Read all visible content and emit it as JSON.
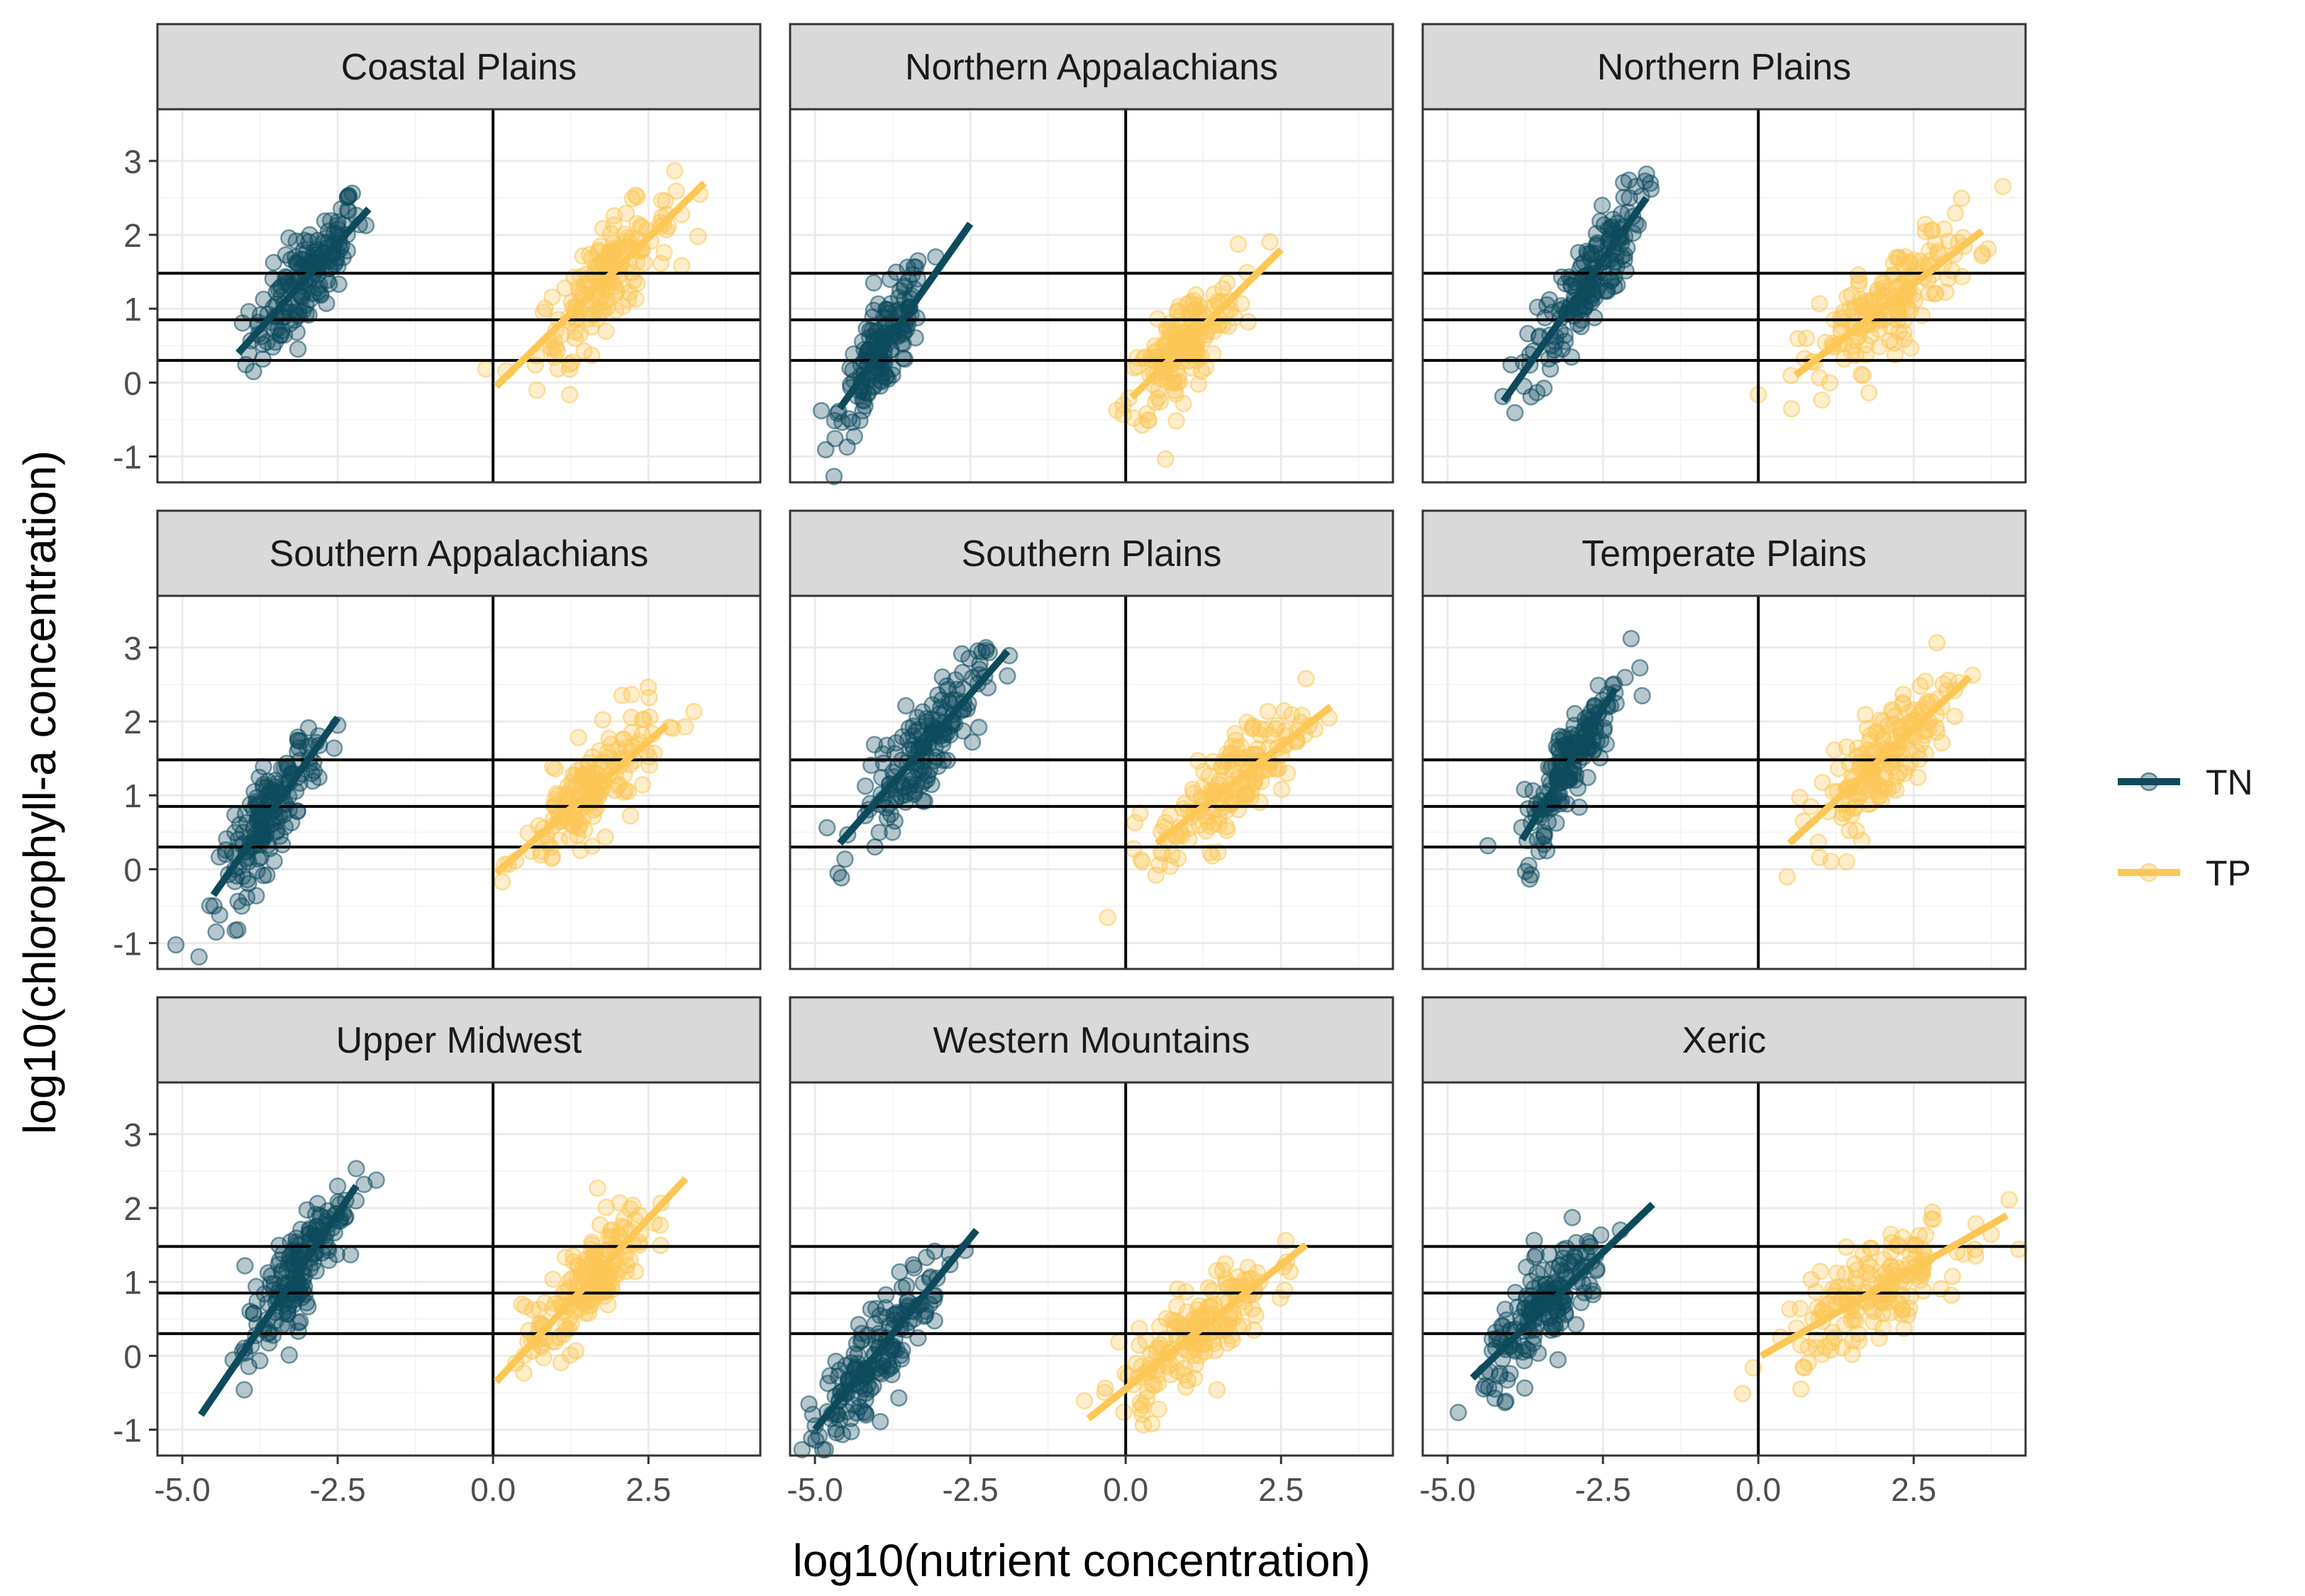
{
  "colors": {
    "TN": "#0d4a5c",
    "TP": "#fcc755",
    "strip_fill": "#d9d9d9",
    "grid_major": "#ebebeb",
    "grid_minor": "#f5f5f5",
    "panel_border": "#333333",
    "ref_line": "#000000"
  },
  "chart_data": {
    "type": "scatter",
    "facet_layout": {
      "rows": 3,
      "cols": 3
    },
    "xlabel": "log10(nutrient concentration)",
    "ylabel": "log10(chlorophyll-a concentration)",
    "xlim": [
      -5.4,
      4.3
    ],
    "ylim": [
      -1.35,
      3.7
    ],
    "x_ticks": [
      -5.0,
      -2.5,
      0.0,
      2.5
    ],
    "x_tick_labels": [
      "-5.0",
      "-2.5",
      "0.0",
      "2.5"
    ],
    "y_ticks": [
      -1,
      0,
      1,
      2,
      3
    ],
    "y_tick_labels": [
      "-1",
      "0",
      "1",
      "2",
      "3"
    ],
    "reference_lines": {
      "vertical_x": [
        0
      ],
      "horizontal_y": [
        0.3,
        0.85,
        1.48
      ]
    },
    "grid": true,
    "legend": {
      "position": "right",
      "entries": [
        "TN",
        "TP"
      ]
    },
    "series_names": [
      "TN",
      "TP"
    ],
    "facets": [
      {
        "title": "Coastal Plains",
        "TN": {
          "x_center": -3.0,
          "x_sd": 0.45,
          "fit": {
            "x": [
              -4.1,
              -2.0
            ],
            "y": [
              0.4,
              2.35
            ]
          }
        },
        "TP": {
          "x_center": 1.8,
          "x_sd": 0.55,
          "fit": {
            "x": [
              0.05,
              3.4
            ],
            "y": [
              -0.05,
              2.7
            ]
          }
        }
      },
      {
        "title": "Northern Appalachians",
        "TN": {
          "x_center": -3.9,
          "x_sd": 0.35,
          "fit": {
            "x": [
              -4.6,
              -2.5
            ],
            "y": [
              -0.35,
              2.15
            ]
          }
        },
        "TP": {
          "x_center": 0.9,
          "x_sd": 0.45,
          "fit": {
            "x": [
              0.1,
              2.5
            ],
            "y": [
              -0.2,
              1.8
            ]
          }
        }
      },
      {
        "title": "Northern Plains",
        "TN": {
          "x_center": -2.8,
          "x_sd": 0.45,
          "fit": {
            "x": [
              -4.1,
              -1.8
            ],
            "y": [
              -0.25,
              2.5
            ]
          }
        },
        "TP": {
          "x_center": 2.1,
          "x_sd": 0.7,
          "fit": {
            "x": [
              0.6,
              3.6
            ],
            "y": [
              0.1,
              2.05
            ]
          }
        }
      },
      {
        "title": "Southern Appalachians",
        "TN": {
          "x_center": -3.6,
          "x_sd": 0.4,
          "fit": {
            "x": [
              -4.5,
              -2.5
            ],
            "y": [
              -0.35,
              2.05
            ]
          }
        },
        "TP": {
          "x_center": 1.6,
          "x_sd": 0.55,
          "fit": {
            "x": [
              0.05,
              2.8
            ],
            "y": [
              -0.05,
              1.95
            ]
          }
        }
      },
      {
        "title": "Southern Plains",
        "TN": {
          "x_center": -3.3,
          "x_sd": 0.5,
          "fit": {
            "x": [
              -4.6,
              -1.9
            ],
            "y": [
              0.35,
              2.95
            ]
          }
        },
        "TP": {
          "x_center": 1.7,
          "x_sd": 0.6,
          "fit": {
            "x": [
              0.5,
              3.3
            ],
            "y": [
              0.35,
              2.2
            ]
          }
        }
      },
      {
        "title": "Temperate Plains",
        "TN": {
          "x_center": -3.0,
          "x_sd": 0.4,
          "fit": {
            "x": [
              -3.8,
              -2.3
            ],
            "y": [
              0.4,
              2.45
            ]
          }
        },
        "TP": {
          "x_center": 2.0,
          "x_sd": 0.55,
          "fit": {
            "x": [
              0.5,
              3.4
            ],
            "y": [
              0.35,
              2.6
            ]
          }
        }
      },
      {
        "title": "Upper Midwest",
        "TN": {
          "x_center": -3.2,
          "x_sd": 0.4,
          "fit": {
            "x": [
              -4.7,
              -2.2
            ],
            "y": [
              -0.8,
              2.3
            ]
          }
        },
        "TP": {
          "x_center": 1.5,
          "x_sd": 0.5,
          "fit": {
            "x": [
              0.05,
              3.1
            ],
            "y": [
              -0.35,
              2.4
            ]
          }
        }
      },
      {
        "title": "Western Mountains",
        "TN": {
          "x_center": -4.0,
          "x_sd": 0.55,
          "fit": {
            "x": [
              -5.0,
              -2.4
            ],
            "y": [
              -1.0,
              1.7
            ]
          }
        },
        "TP": {
          "x_center": 1.1,
          "x_sd": 0.6,
          "fit": {
            "x": [
              -0.6,
              2.9
            ],
            "y": [
              -0.85,
              1.5
            ]
          }
        }
      },
      {
        "title": "Xeric",
        "TN": {
          "x_center": -3.4,
          "x_sd": 0.5,
          "fit": {
            "x": [
              -4.6,
              -1.7
            ],
            "y": [
              -0.3,
              2.05
            ]
          }
        },
        "TP": {
          "x_center": 1.8,
          "x_sd": 0.75,
          "fit": {
            "x": [
              0.05,
              4.0
            ],
            "y": [
              0.0,
              1.9
            ]
          }
        }
      }
    ]
  }
}
